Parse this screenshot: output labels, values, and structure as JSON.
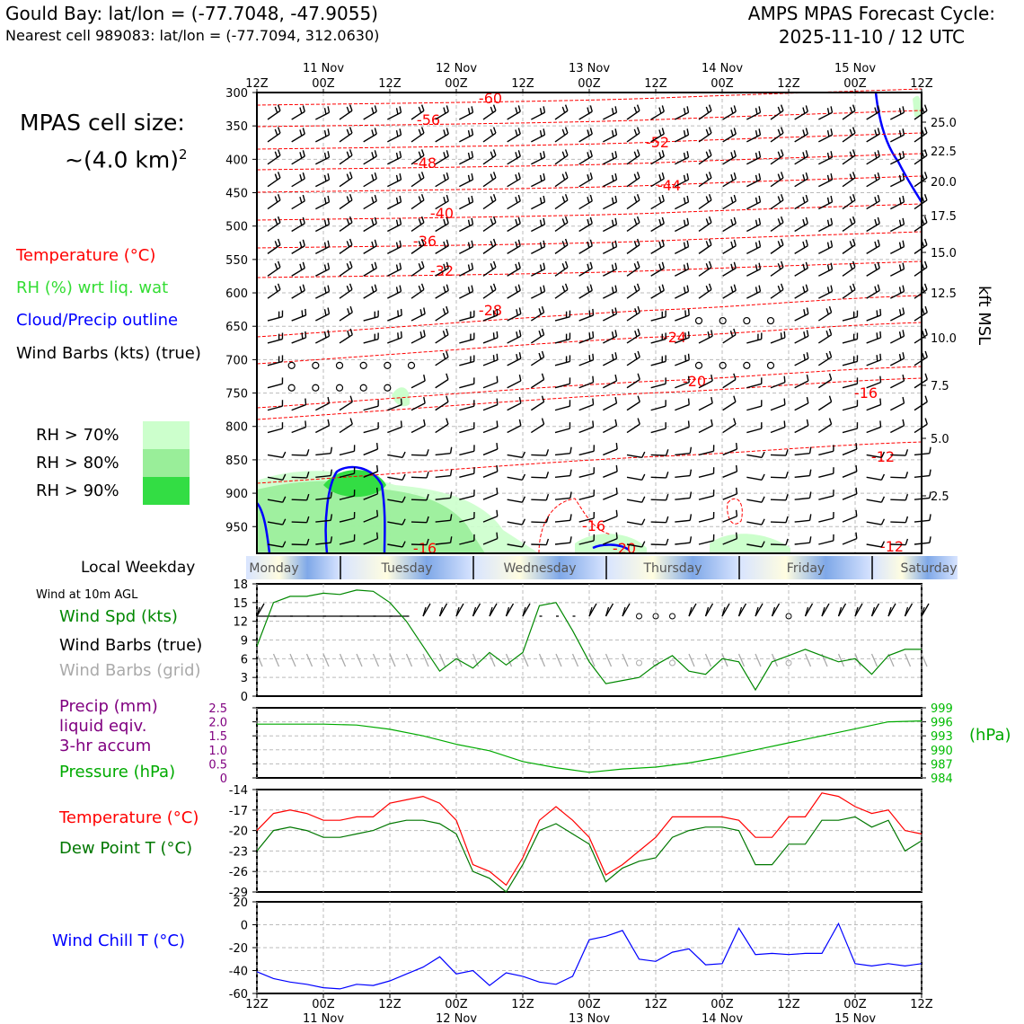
{
  "header": {
    "title": "Gould Bay: lat/lon = (-77.7048, -47.9055)",
    "subtitle": "Nearest cell 989083: lat/lon = (-77.7094, 312.0630)",
    "forecast_title": "AMPS MPAS Forecast Cycle:",
    "forecast_cycle": "2025-11-10 / 12 UTC"
  },
  "side": {
    "cell_size_label": "MPAS cell size:",
    "cell_size_value": "~(4.0 km)",
    "cell_size_exp": "2",
    "legend_temperature": "Temperature (°C)",
    "legend_rh": "RH (%) wrt liq. wat",
    "legend_cloud": "Cloud/Precip outline",
    "legend_wind": "Wind Barbs (kts) (true)",
    "rh70": "RH > 70%",
    "rh80": "RH > 80%",
    "rh90": "RH > 90%",
    "local_weekday": "Local Weekday",
    "wind10m": "Wind at 10m AGL",
    "wind_spd": "Wind Spd (kts)",
    "wind_barbs_true": "Wind Barbs (true)",
    "wind_barbs_grid": "Wind Barbs (grid)",
    "precip1": "Precip (mm)",
    "precip2": "liquid eqiv.",
    "precip3": "3-hr accum",
    "pressure": "Pressure (hPa)",
    "temp2": "Temperature (°C)",
    "dewpoint": "Dew Point T (°C)",
    "windchill": "Wind Chill T (°C)",
    "kft_label": "kft MSL",
    "hpa_label": "(hPa)"
  },
  "colors": {
    "temperature": "#ff0000",
    "rh": "#33cc33",
    "cloud": "#0000ff",
    "wind": "#000000",
    "wind_grid": "#aaaaaa",
    "precip": "#800080",
    "pressure": "#00aa00",
    "dewpoint": "#007700",
    "windchill": "#0000ff",
    "rh70": "#ccffcc",
    "rh80": "#99ee99",
    "rh90": "#33dd44"
  },
  "chart_data": [
    {
      "type": "heatmap",
      "name": "cross-section",
      "x_top_ticks": [
        "12Z",
        "00Z",
        "12Z",
        "00Z",
        "12Z",
        "00Z",
        "12Z",
        "00Z",
        "12Z",
        "00Z",
        "12Z"
      ],
      "x_day_labels": [
        "11 Nov",
        "12 Nov",
        "13 Nov",
        "14 Nov",
        "15 Nov"
      ],
      "y_pressure_ticks": [
        300,
        350,
        400,
        450,
        500,
        550,
        600,
        650,
        700,
        750,
        800,
        850,
        900,
        950
      ],
      "y_kft_ticks": [
        "25.0",
        "22.5",
        "20.0",
        "17.5",
        "15.0",
        "12.5",
        "10.0",
        "7.5",
        "5.0",
        "2.5"
      ],
      "temperature_contours": [
        -60,
        -56,
        -52,
        -48,
        -44,
        -40,
        -36,
        -32,
        -28,
        -24,
        -20,
        -16,
        -12
      ]
    },
    {
      "type": "table",
      "name": "local-weekday",
      "days": [
        "Monday",
        "Tuesday",
        "Wednesday",
        "Thursday",
        "Friday",
        "Saturday"
      ]
    },
    {
      "type": "line",
      "name": "wind-speed",
      "y_ticks": [
        0,
        3,
        6,
        9,
        12,
        15,
        18
      ],
      "ylim": [
        0,
        18
      ],
      "x_hours": [
        0,
        3,
        6,
        9,
        12,
        15,
        18,
        21,
        24,
        27,
        30,
        33,
        36,
        39,
        42,
        45,
        48,
        51,
        54,
        57,
        60,
        63,
        66,
        69,
        72,
        75,
        78,
        81,
        84,
        87,
        90,
        93,
        96,
        99,
        102,
        105,
        108,
        111,
        114,
        117,
        120
      ],
      "values": [
        8,
        15,
        16,
        16,
        16.5,
        16.3,
        17,
        16.8,
        15,
        12,
        8,
        4,
        6,
        4.5,
        7,
        5,
        7,
        14.5,
        15,
        10.5,
        5.5,
        2,
        2.5,
        3,
        5,
        6.5,
        4,
        3.5,
        6,
        5.5,
        1,
        5.5,
        6.5,
        7.5,
        6.5,
        5.5,
        6,
        3.5,
        6.5,
        7.5,
        7.5
      ]
    },
    {
      "type": "line",
      "name": "pressure",
      "y_left_ticks": [
        "0",
        "0.5",
        "1.0",
        "1.5",
        "2.0",
        "2.5"
      ],
      "y_right_ticks": [
        "984",
        "987",
        "990",
        "993",
        "996",
        "999"
      ],
      "ylim": [
        984,
        999
      ],
      "x_hours": [
        0,
        6,
        12,
        18,
        24,
        30,
        36,
        42,
        48,
        54,
        60,
        66,
        72,
        78,
        84,
        90,
        96,
        102,
        108,
        114,
        120
      ],
      "values": [
        995.5,
        995.5,
        995.5,
        995.3,
        994.4,
        993,
        991.2,
        989.8,
        987.5,
        986.2,
        985.2,
        985.9,
        986.3,
        987.2,
        988.5,
        990,
        991.5,
        993,
        994.5,
        996,
        996.2
      ]
    },
    {
      "type": "line",
      "name": "temperature-dewpoint",
      "y_ticks": [
        -29,
        -26,
        -23,
        -20,
        -17,
        -14
      ],
      "ylim": [
        -29,
        -14
      ],
      "x_hours": [
        0,
        3,
        6,
        9,
        12,
        15,
        18,
        21,
        24,
        27,
        30,
        33,
        36,
        39,
        42,
        45,
        48,
        51,
        54,
        57,
        60,
        63,
        66,
        69,
        72,
        75,
        78,
        81,
        84,
        87,
        90,
        93,
        96,
        99,
        102,
        105,
        108,
        111,
        114,
        117,
        120
      ],
      "series": [
        {
          "name": "Temperature (°C)",
          "values": [
            -20,
            -17.5,
            -17,
            -17.5,
            -18.5,
            -18.5,
            -18,
            -18,
            -16,
            -15.5,
            -15,
            -16,
            -18.5,
            -25,
            -26,
            -28,
            -24,
            -18.5,
            -16.5,
            -18.5,
            -21,
            -26.5,
            -25,
            -23,
            -21,
            -18,
            -18,
            -18,
            -18,
            -18.5,
            -21,
            -21,
            -18,
            -18,
            -14.5,
            -15,
            -16.5,
            -17.5,
            -17,
            -20,
            -20.5
          ]
        },
        {
          "name": "Dew Point T (°C)",
          "values": [
            -23,
            -20,
            -19.5,
            -20,
            -21,
            -21,
            -20.5,
            -20,
            -19,
            -18.5,
            -18.5,
            -19,
            -20.5,
            -26,
            -27,
            -29,
            -25,
            -20,
            -19,
            -20.5,
            -22,
            -27.5,
            -25.5,
            -24.5,
            -24,
            -21,
            -20,
            -19.5,
            -19.5,
            -20,
            -25,
            -25,
            -22,
            -22,
            -18.5,
            -18.5,
            -18,
            -19.5,
            -18.5,
            -23,
            -21.5
          ]
        }
      ]
    },
    {
      "type": "line",
      "name": "wind-chill",
      "y_ticks": [
        -60,
        -40,
        -20,
        0,
        20
      ],
      "ylim": [
        -60,
        20
      ],
      "x_hours": [
        0,
        3,
        6,
        9,
        12,
        15,
        18,
        21,
        24,
        27,
        30,
        33,
        36,
        39,
        42,
        45,
        48,
        51,
        54,
        57,
        60,
        63,
        66,
        69,
        72,
        75,
        78,
        81,
        84,
        87,
        90,
        93,
        96,
        99,
        102,
        105,
        108,
        111,
        114,
        117,
        120
      ],
      "values": [
        -41,
        -47,
        -50,
        -52,
        -55,
        -56,
        -52,
        -53,
        -49,
        -43,
        -37,
        -28,
        -43,
        -40,
        -53,
        -42,
        -45,
        -50,
        -52,
        -45,
        -13,
        -10,
        -5,
        -30,
        -32,
        -24,
        -21,
        -35,
        -34,
        -3,
        -26,
        -25,
        -26,
        -25,
        -25,
        1,
        -34,
        -36,
        -34,
        -36,
        -34
      ]
    }
  ],
  "x_bottom": {
    "ticks": [
      "12Z",
      "00Z",
      "12Z",
      "00Z",
      "12Z",
      "00Z",
      "12Z",
      "00Z",
      "12Z",
      "00Z",
      "12Z"
    ],
    "days": [
      "11 Nov",
      "12 Nov",
      "13 Nov",
      "14 Nov",
      "15 Nov"
    ]
  }
}
